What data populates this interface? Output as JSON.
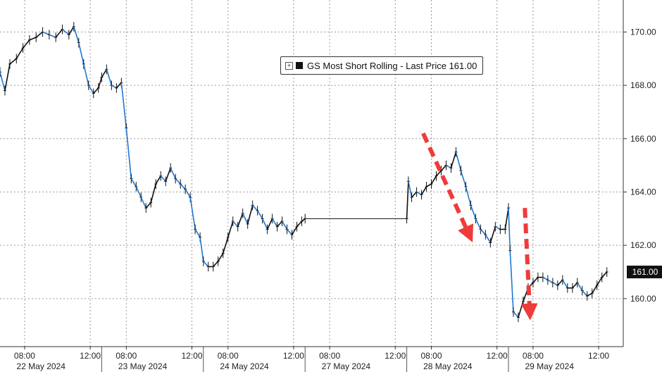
{
  "colors": {
    "bar_up": "#111111",
    "bar_down": "#1f78d1",
    "grid": "#9a9a9a",
    "arrow": "#ee3b3b",
    "last_price_bg": "#111111",
    "last_price_text": "#ffffff"
  },
  "legend": {
    "label": "GS Most Short Rolling - Last Price 161.00",
    "position": "top-center"
  },
  "chart_data": {
    "type": "line",
    "title": "",
    "xlabel": "",
    "ylabel": "",
    "ylim": [
      158.2,
      171.2
    ],
    "y_ticks": [
      {
        "value": 170,
        "label": "170.00"
      },
      {
        "value": 168,
        "label": "168.00"
      },
      {
        "value": 166,
        "label": "166.00"
      },
      {
        "value": 164,
        "label": "164.00"
      },
      {
        "value": 162,
        "label": "162.00"
      },
      {
        "value": 160,
        "label": "160.00"
      }
    ],
    "last_price": {
      "value": 161.0,
      "label": "161.00"
    },
    "x_time_labels": [
      "08:00",
      "12:00",
      "08:00",
      "12:00",
      "08:00",
      "12:00",
      "08:00",
      "12:00",
      "08:00",
      "12:00",
      "08:00",
      "12:00"
    ],
    "x_time_positions": [
      1.5,
      5.5,
      7.7,
      11.7,
      13.9,
      17.9,
      20.1,
      24.1,
      26.3,
      30.3,
      32.5,
      36.5
    ],
    "x_day_labels": [
      "22 May 2024",
      "23 May 2024",
      "24 May 2024",
      "27 May 2024",
      "28 May 2024",
      "29 May 2024"
    ],
    "x_day_positions": [
      2.5,
      8.7,
      14.9,
      21.1,
      27.3,
      33.5
    ],
    "x_day_boundaries": [
      6.2,
      12.4,
      18.6,
      24.8,
      31.0
    ],
    "x_range": [
      0,
      38
    ],
    "grid": true,
    "series": [
      {
        "name": "GS Most Short Rolling",
        "x": [
          0.0,
          0.3,
          0.6,
          1.0,
          1.4,
          1.8,
          2.2,
          2.6,
          3.0,
          3.4,
          3.8,
          4.2,
          4.5,
          4.8,
          5.1,
          5.4,
          5.7,
          6.0,
          6.2,
          6.5,
          6.8,
          7.1,
          7.4,
          7.7,
          8.0,
          8.3,
          8.6,
          8.9,
          9.2,
          9.5,
          9.8,
          10.1,
          10.4,
          10.7,
          11.0,
          11.3,
          11.6,
          11.9,
          12.2,
          12.4,
          12.7,
          13.0,
          13.3,
          13.6,
          13.9,
          14.2,
          14.5,
          14.8,
          15.1,
          15.4,
          15.7,
          16.0,
          16.3,
          16.6,
          16.9,
          17.2,
          17.5,
          17.8,
          18.1,
          18.4,
          18.6,
          24.8,
          24.9,
          25.1,
          25.4,
          25.7,
          26.0,
          26.3,
          26.6,
          26.9,
          27.2,
          27.5,
          27.8,
          28.1,
          28.4,
          28.7,
          29.0,
          29.3,
          29.6,
          29.9,
          30.2,
          30.5,
          30.8,
          31.0,
          31.1,
          31.3,
          31.6,
          31.9,
          32.2,
          32.5,
          32.8,
          33.1,
          33.4,
          33.7,
          34.0,
          34.3,
          34.6,
          34.9,
          35.2,
          35.5,
          35.8,
          36.1,
          36.4,
          36.7,
          37.0
        ],
        "y": [
          168.5,
          167.8,
          168.8,
          169.0,
          169.4,
          169.7,
          169.8,
          170.0,
          169.9,
          169.8,
          170.1,
          169.9,
          170.2,
          169.6,
          168.8,
          168.0,
          167.7,
          167.9,
          168.3,
          168.6,
          168.0,
          167.9,
          168.1,
          166.4,
          164.5,
          164.2,
          163.8,
          163.4,
          163.6,
          164.3,
          164.6,
          164.4,
          164.9,
          164.5,
          164.3,
          164.1,
          163.8,
          162.6,
          162.3,
          161.4,
          161.2,
          161.2,
          161.4,
          161.7,
          162.3,
          162.9,
          162.7,
          163.2,
          162.8,
          163.5,
          163.3,
          163.0,
          162.6,
          163.0,
          162.7,
          162.9,
          162.6,
          162.4,
          162.7,
          162.9,
          163.0,
          163.0,
          164.4,
          163.8,
          164.0,
          163.9,
          164.2,
          164.3,
          164.6,
          164.8,
          165.0,
          164.9,
          165.5,
          164.8,
          164.2,
          163.5,
          163.0,
          162.6,
          162.4,
          162.1,
          162.7,
          162.6,
          162.6,
          163.4,
          161.8,
          159.5,
          159.3,
          159.9,
          160.4,
          160.6,
          160.8,
          160.8,
          160.7,
          160.6,
          160.5,
          160.7,
          160.4,
          160.4,
          160.6,
          160.3,
          160.1,
          160.2,
          160.5,
          160.8,
          161.0
        ]
      }
    ],
    "annotations": [
      {
        "type": "arrow",
        "from": [
          25.8,
          166.2
        ],
        "to": [
          28.6,
          162.4
        ]
      },
      {
        "type": "arrow",
        "from": [
          32.0,
          163.4
        ],
        "to": [
          32.3,
          159.5
        ]
      }
    ]
  }
}
